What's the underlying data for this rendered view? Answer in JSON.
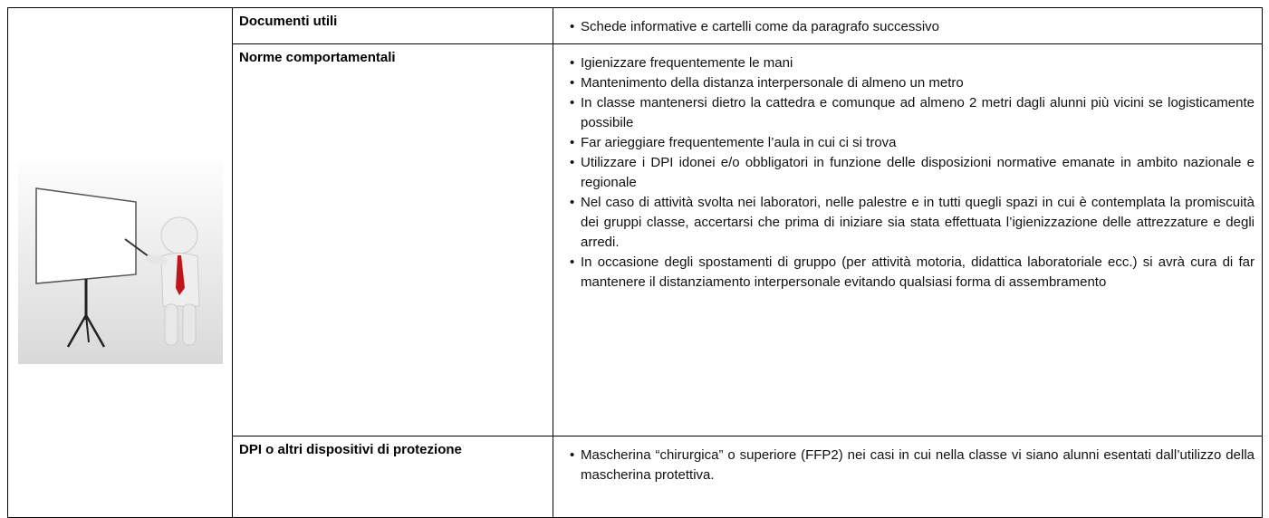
{
  "table": {
    "rows": [
      {
        "label": "Documenti utili",
        "items": [
          "Schede informative e cartelli come da paragrafo successivo"
        ]
      },
      {
        "label": "Norme comportamentali",
        "items": [
          "Igienizzare frequentemente le mani",
          "Mantenimento della distanza interpersonale di almeno un metro",
          "In classe mantenersi dietro la cattedra e comunque ad almeno 2 metri dagli alunni più vicini se logisticamente possibile",
          "Far arieggiare frequentemente l’aula in cui ci si trova",
          "Utilizzare i DPI idonei e/o obbligatori in funzione delle disposizioni normative emanate in ambito nazionale e regionale",
          "Nel caso di attività svolta nei laboratori, nelle palestre e in tutti quegli spazi in cui è contemplata la promiscuità dei gruppi classe, accertarsi che prima di iniziare sia stata effettuata l’igienizzazione delle attrezzature e degli arredi.",
          "In occasione degli spostamenti di gruppo (per attività motoria, didattica laboratoriale ecc.) si avrà cura di far mantenere il distanziamento interpersonale evitando qualsiasi forma di assembramento"
        ]
      },
      {
        "label": "DPI o altri dispositivi di protezione",
        "items": [
          "Mascherina “chirurgica” o superiore (FFP2) nei casi in cui nella classe vi siano alunni esentati dall’utilizzo della mascherina protettiva."
        ]
      }
    ]
  }
}
